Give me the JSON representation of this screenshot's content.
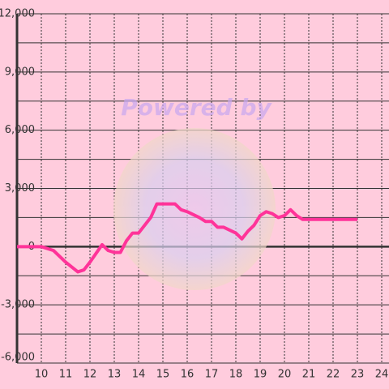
{
  "chart_data": {
    "type": "line",
    "watermark": "Powered by",
    "x": [
      9,
      9.5,
      10,
      10.5,
      11,
      11.5,
      11.75,
      12,
      12.5,
      12.75,
      13,
      13.25,
      13.5,
      13.75,
      14,
      14.5,
      14.75,
      15,
      15.5,
      15.75,
      16,
      16.5,
      16.75,
      17,
      17.25,
      17.5,
      18,
      18.25,
      18.5,
      18.75,
      19,
      19.25,
      19.5,
      19.75,
      20,
      20.25,
      20.5,
      20.75,
      21,
      22,
      23
    ],
    "series": [
      {
        "color": "#ff3399",
        "values": [
          0,
          0,
          0,
          -200,
          -800,
          -1300,
          -1200,
          -800,
          100,
          -200,
          -300,
          -300,
          300,
          700,
          700,
          1500,
          2200,
          2200,
          2200,
          1900,
          1800,
          1500,
          1300,
          1300,
          1000,
          1000,
          700,
          400,
          800,
          1100,
          1600,
          1800,
          1700,
          1500,
          1600,
          1900,
          1600,
          1400,
          1400,
          1400,
          1400
        ]
      }
    ],
    "xlim": [
      9,
      24.3
    ],
    "xticks": [
      10,
      11,
      12,
      13,
      14,
      15,
      16,
      17,
      18,
      19,
      20,
      21,
      22,
      23,
      24
    ],
    "ylim": [
      -6000,
      12000
    ],
    "yticks": [
      {
        "value": -6000,
        "label": "-6,000"
      },
      {
        "value": -3000,
        "label": "-3,000"
      },
      0,
      {
        "value": 3000,
        "label": "3,000"
      },
      {
        "value": 6000,
        "label": "6,000"
      },
      {
        "value": 9000,
        "label": "9,000"
      },
      {
        "value": 12000,
        "label": "12,000"
      }
    ],
    "y_minor_ticks": [
      -4500,
      -1500,
      1500,
      4500,
      7500,
      10500
    ],
    "grid": true
  }
}
